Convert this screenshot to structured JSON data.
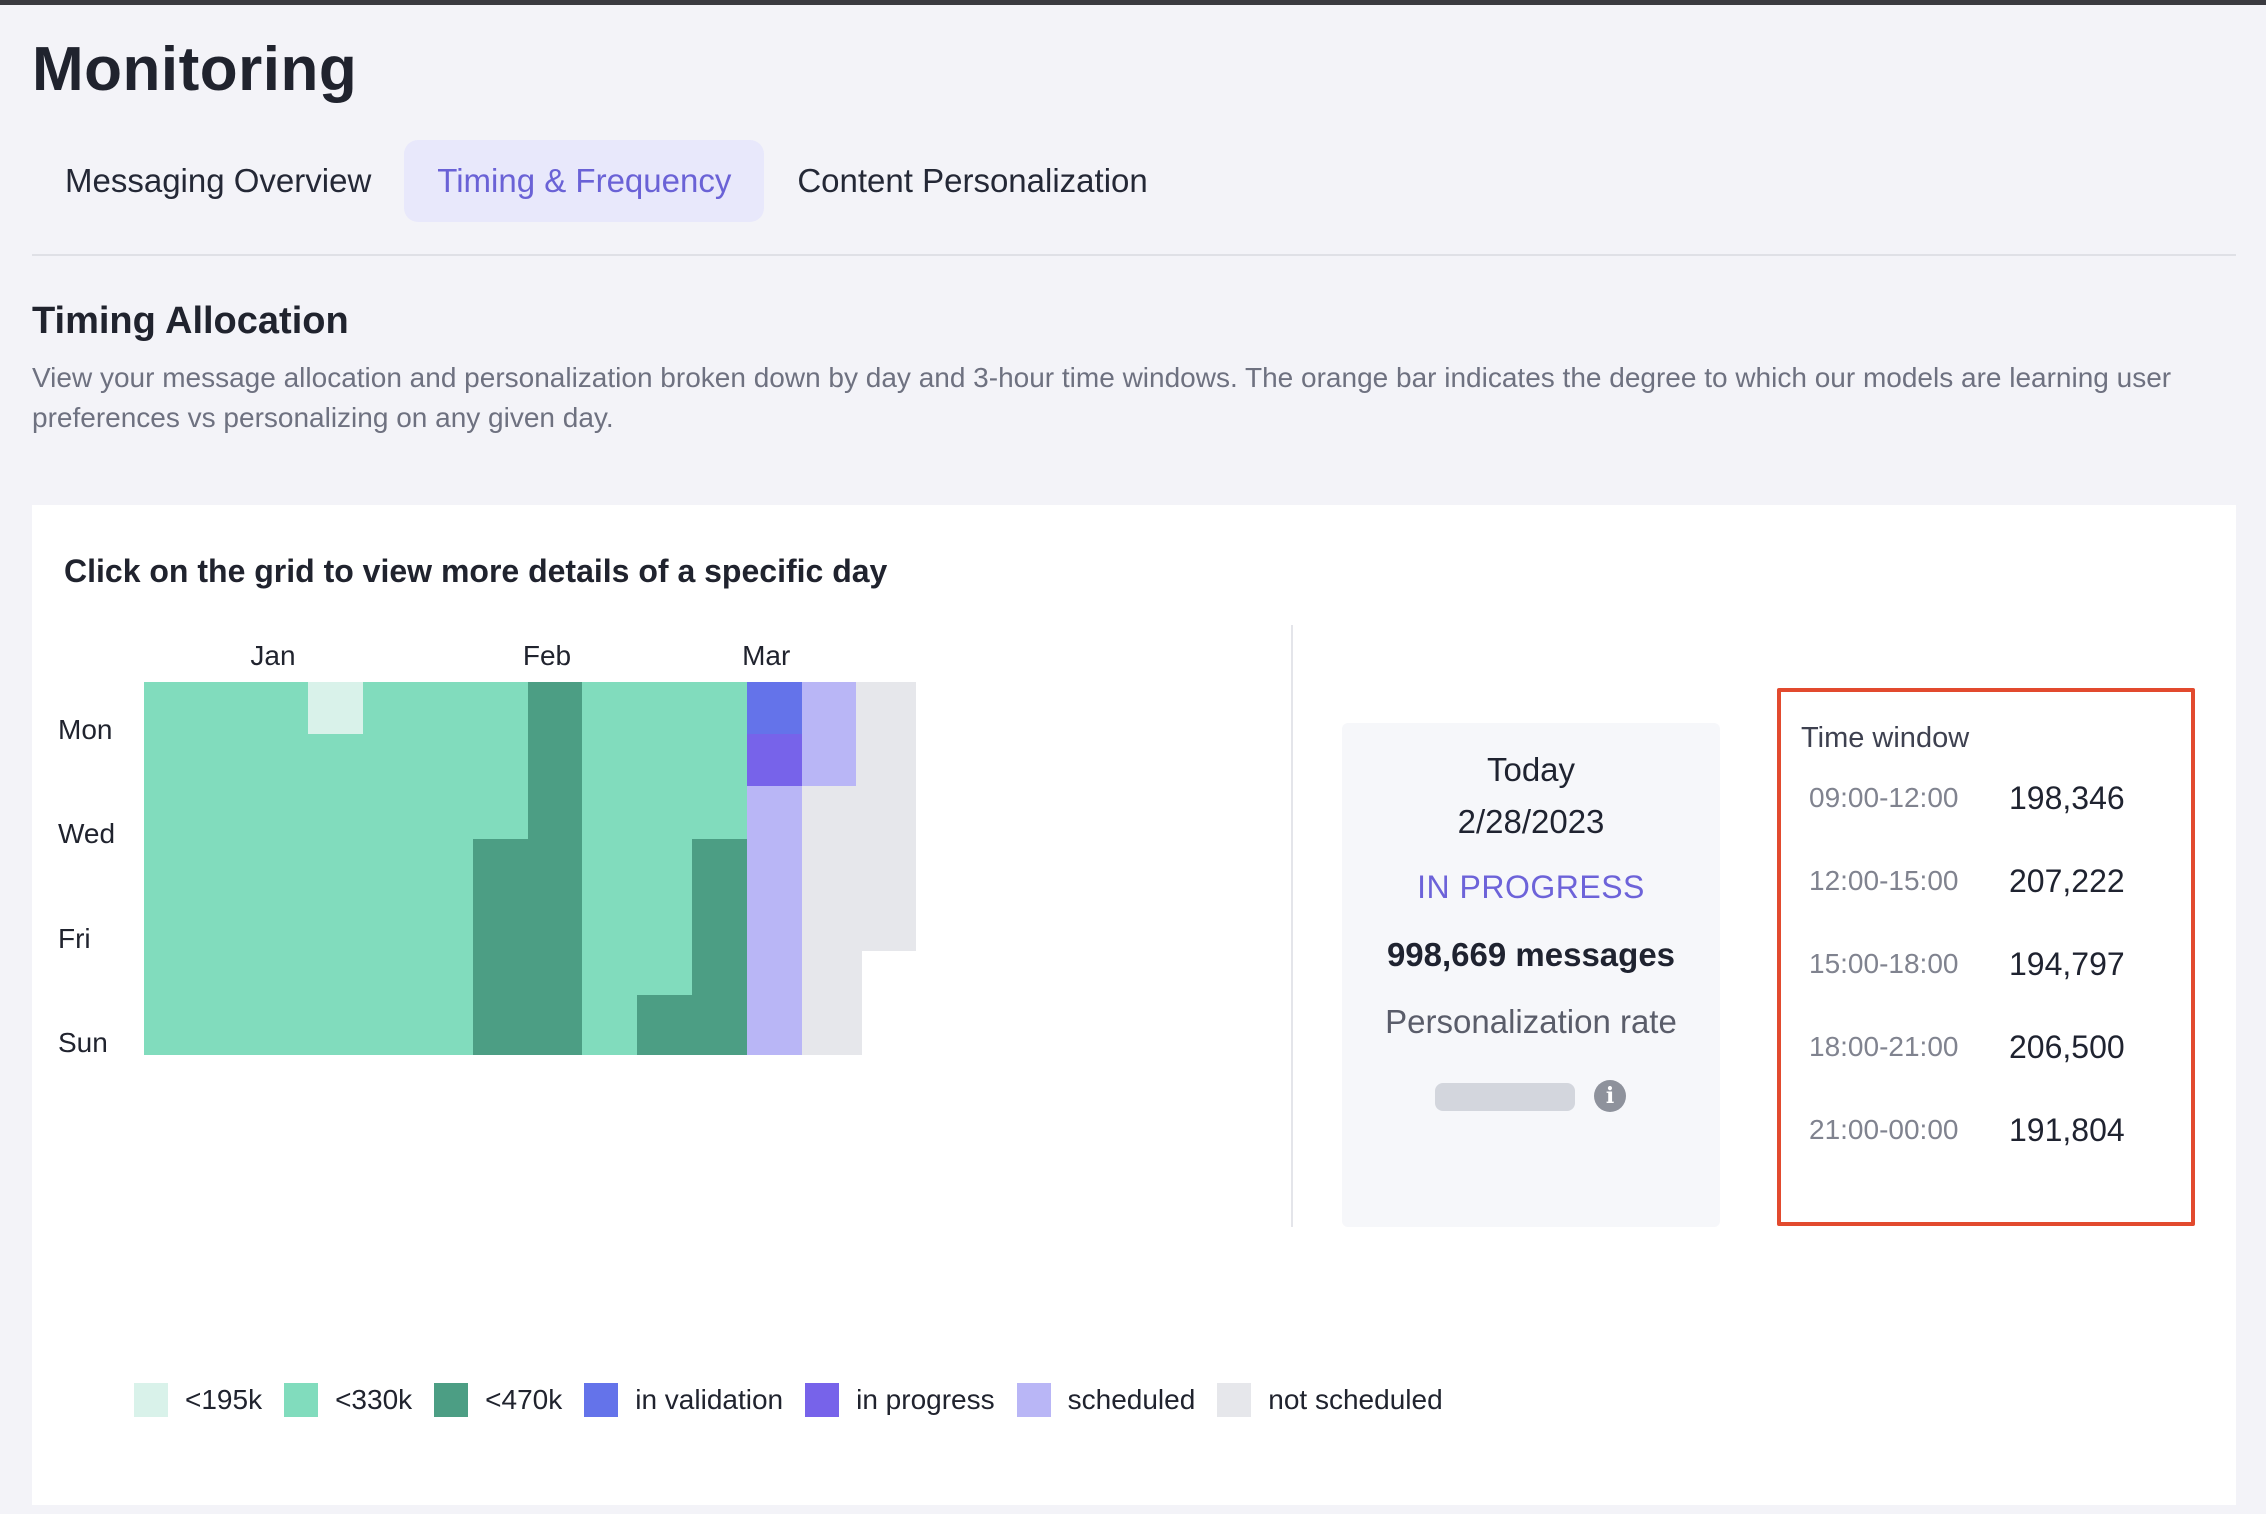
{
  "page": {
    "title": "Monitoring"
  },
  "tabs": [
    {
      "label": "Messaging Overview",
      "active": false
    },
    {
      "label": "Timing & Frequency",
      "active": true
    },
    {
      "label": "Content Personalization",
      "active": false
    }
  ],
  "section": {
    "title": "Timing Allocation",
    "description": "View your message allocation and personalization broken down by day and 3-hour time windows. The orange bar indicates the degree to which our models are learning user preferences vs personalizing on any given day."
  },
  "grid": {
    "heading": "Click on the grid to view more details of a specific day",
    "months": [
      {
        "label": "Jan",
        "col": 2.5
      },
      {
        "label": "Feb",
        "col": 7.5
      },
      {
        "label": "Mar",
        "col": 11.5
      }
    ],
    "day_labels": [
      {
        "label": "Mon",
        "row": 0
      },
      {
        "label": "Wed",
        "row": 2
      },
      {
        "label": "Fri",
        "row": 4
      },
      {
        "label": "Sun",
        "row": 6
      }
    ],
    "weeks": [
      [
        "mid",
        "mid",
        "mid",
        "mid",
        "mid",
        "mid",
        "mid"
      ],
      [
        "mid",
        "mid",
        "mid",
        "mid",
        "mid",
        "mid",
        "mid"
      ],
      [
        "mid",
        "mid",
        "mid",
        "mid",
        "mid",
        "mid",
        "mid"
      ],
      [
        "low",
        "mid",
        "mid",
        "mid",
        "mid",
        "mid",
        "mid"
      ],
      [
        "mid",
        "mid",
        "mid",
        "mid",
        "mid",
        "mid",
        "mid"
      ],
      [
        "mid",
        "mid",
        "mid",
        "mid",
        "mid",
        "mid",
        "mid"
      ],
      [
        "mid",
        "mid",
        "mid",
        "high",
        "high",
        "high",
        "high"
      ],
      [
        "high",
        "high",
        "high",
        "high",
        "high",
        "high",
        "high"
      ],
      [
        "mid",
        "mid",
        "mid",
        "mid",
        "mid",
        "mid",
        "mid"
      ],
      [
        "mid",
        "mid",
        "mid",
        "mid",
        "mid",
        "mid",
        "high"
      ],
      [
        "mid",
        "mid",
        "mid",
        "high",
        "high",
        "high",
        "high"
      ],
      [
        "valid",
        "prog",
        "sched",
        "sched",
        "sched",
        "sched",
        "sched"
      ],
      [
        "sched",
        "sched",
        "not",
        "not",
        "not",
        "not",
        "not"
      ],
      [
        "not",
        "not",
        "not",
        "not",
        "not",
        null,
        null
      ]
    ],
    "colors": {
      "low": "#d9f2ea",
      "mid": "#81dcbd",
      "high": "#4c9e84",
      "valid": "#6473ea",
      "prog": "#7763ea",
      "sched": "#b9b6f6",
      "not": "#e6e7eb"
    }
  },
  "today": {
    "label": "Today",
    "date": "2/28/2023",
    "status": "IN PROGRESS",
    "messages": "998,669 messages",
    "personalization_label": "Personalization rate",
    "info_icon": "info-icon"
  },
  "time_windows": {
    "title": "Time window",
    "rows": [
      {
        "range": "09:00-12:00",
        "value": "198,346"
      },
      {
        "range": "12:00-15:00",
        "value": "207,222"
      },
      {
        "range": "15:00-18:00",
        "value": "194,797"
      },
      {
        "range": "18:00-21:00",
        "value": "206,500"
      },
      {
        "range": "21:00-00:00",
        "value": "191,804"
      }
    ]
  },
  "legend": [
    {
      "key": "low",
      "label": "<195k"
    },
    {
      "key": "mid",
      "label": "<330k"
    },
    {
      "key": "high",
      "label": "<470k"
    },
    {
      "key": "valid",
      "label": "in validation"
    },
    {
      "key": "prog",
      "label": "in progress"
    },
    {
      "key": "sched",
      "label": "scheduled"
    },
    {
      "key": "not",
      "label": "not scheduled"
    }
  ]
}
